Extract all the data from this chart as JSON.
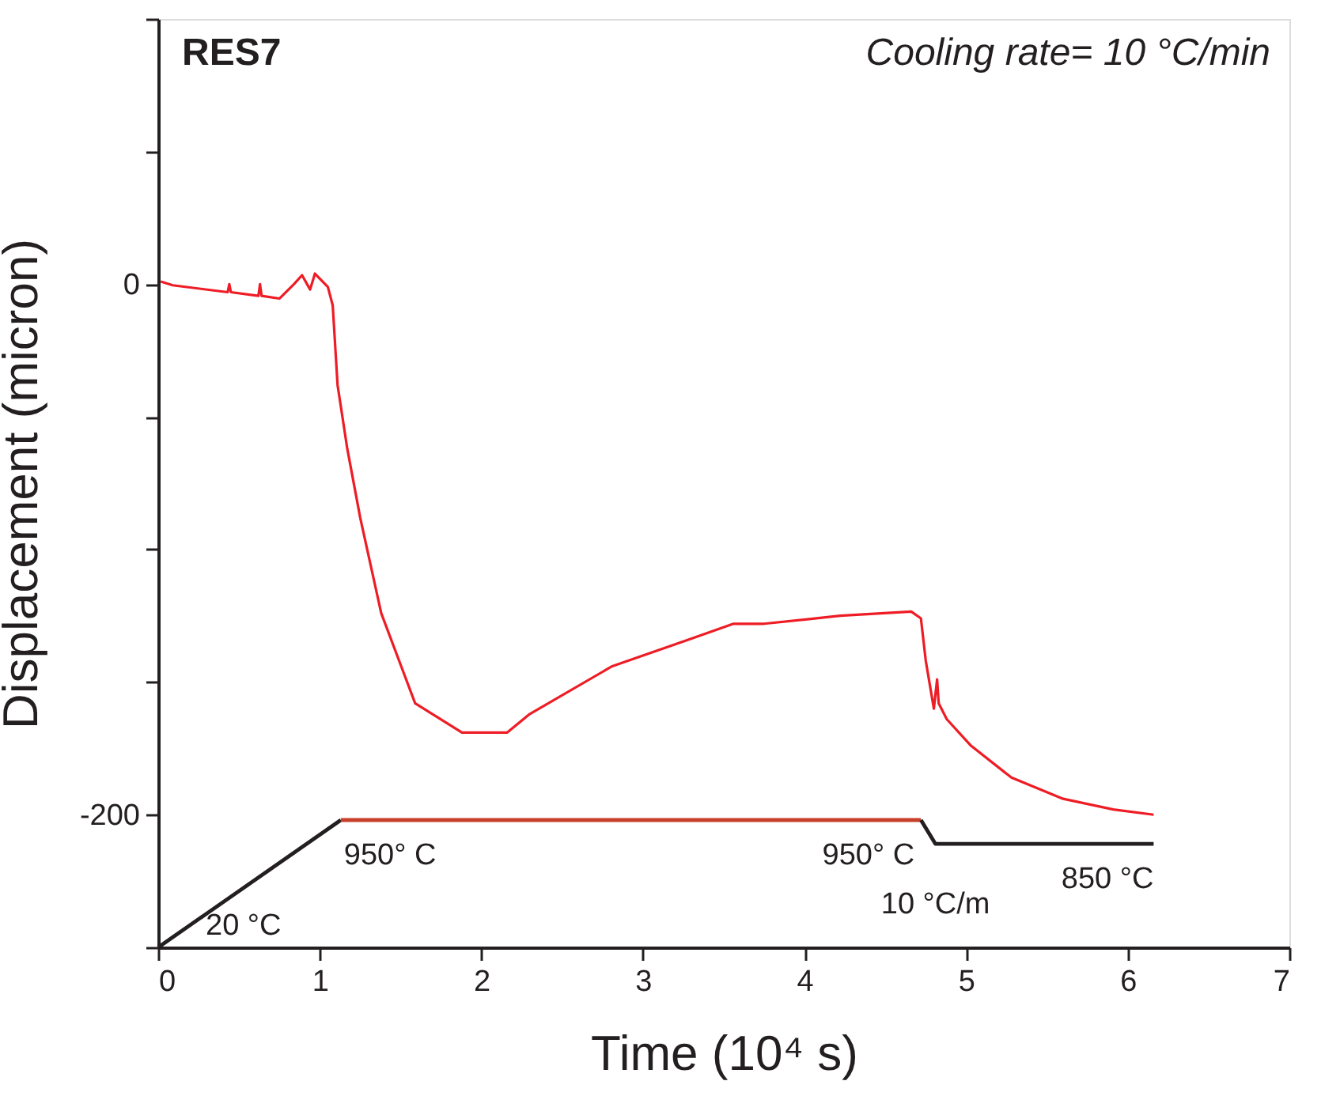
{
  "chart_data": {
    "type": "line",
    "xlabel": "Time (10⁴ s)",
    "ylabel": "Displacement (micron)",
    "xlim": [
      0,
      7
    ],
    "xticks": [
      0,
      1,
      2,
      3,
      4,
      5,
      6,
      7
    ],
    "ylim": [
      -250,
      100
    ],
    "yticks": [
      {
        "value": -250,
        "label": null
      },
      -200,
      {
        "value": -150,
        "label": null
      },
      {
        "value": -100,
        "label": null
      },
      {
        "value": -50,
        "label": null
      },
      0,
      {
        "value": 50,
        "label": null
      },
      {
        "value": 100,
        "label": null
      }
    ],
    "grid": false,
    "marker": "none",
    "line_style": "solid",
    "series": [
      {
        "color": "#ee1c25",
        "x": [
          0.016,
          0.09,
          0.43,
          0.44,
          0.45,
          0.62,
          0.63,
          0.64,
          0.75,
          0.84,
          0.89,
          0.94,
          0.97,
          1.05,
          1.08,
          1.11,
          1.17,
          1.25,
          1.38,
          1.59,
          1.88,
          2.16,
          2.3,
          2.81,
          3.28,
          3.56,
          3.75,
          4.22,
          4.66,
          4.72,
          4.75,
          4.8,
          4.82,
          4.83,
          4.88,
          5.03,
          5.28,
          5.6,
          5.91,
          6.16
        ],
        "values": [
          1,
          -0.4,
          -3,
          0,
          -3,
          -4.4,
          0,
          -4.4,
          -5.4,
          0,
          3.4,
          -2,
          4,
          -1,
          -8,
          -38,
          -62,
          -88,
          -124,
          -158,
          -169,
          -169,
          -162,
          -144,
          -134,
          -128,
          -128,
          -125,
          -123.4,
          -126,
          -142,
          -160,
          -149,
          -158,
          -164,
          -174,
          -186,
          -194,
          -198,
          -200
        ]
      },
      {
        "color": "#231f20",
        "x": [
          0,
          1.13
        ],
        "values": [
          -250,
          -202
        ]
      },
      {
        "color": "#c8402a",
        "x": [
          1.13,
          4.72
        ],
        "values": [
          -202,
          -202
        ]
      },
      {
        "color": "#231f20",
        "x": [
          4.72,
          4.81,
          6.16
        ],
        "values": [
          -202,
          -211,
          -211
        ]
      }
    ],
    "annotations": [
      "RES7",
      "Cooling rate= 10 °C/min",
      {
        "text": "20 °C",
        "x": 0,
        "y": -250
      },
      {
        "text": "950° C",
        "x": 1.13,
        "y": -202
      },
      {
        "text": "950° C",
        "x": 4.72,
        "y": -202
      },
      {
        "text": "10 °C/m",
        "x": 4.81,
        "y": -211
      },
      {
        "text": "850 °C",
        "x": 6.16,
        "y": -211
      }
    ]
  }
}
